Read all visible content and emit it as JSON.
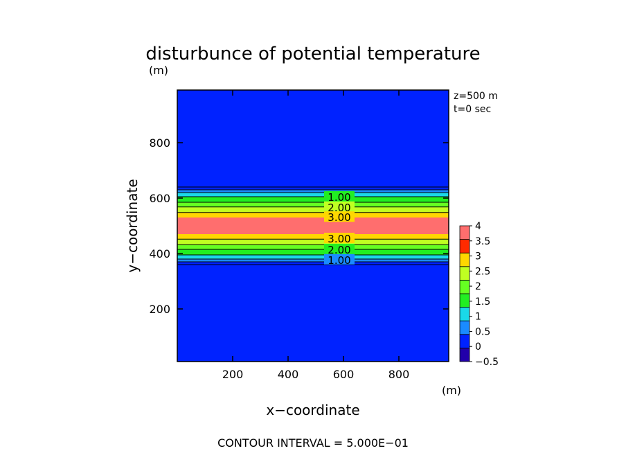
{
  "chart_data": {
    "type": "heatmap",
    "title": "disturbunce of potential temperature",
    "xlabel": "x−coordinate",
    "ylabel": "y−coordinate",
    "x_unit": "(m)",
    "y_unit": "(m)",
    "xlim": [
      0,
      980
    ],
    "ylim": [
      10,
      990
    ],
    "x_ticks": [
      200,
      400,
      600,
      800
    ],
    "y_ticks": [
      200,
      400,
      600,
      800
    ],
    "annotations": [
      "z=500 m",
      "t=0 sec"
    ],
    "footer": "CONTOUR INTERVAL = 5.000E−01",
    "contour_interval": 0.5,
    "field": {
      "description_of_values": "bands of value along y (uniform in x)",
      "bands": [
        {
          "y": [
            10,
            360
          ],
          "value": 0.0
        },
        {
          "y": [
            360,
            370
          ],
          "value": 0.25
        },
        {
          "y": [
            370,
            380
          ],
          "value": 0.75
        },
        {
          "y": [
            380,
            395
          ],
          "value": 1.25
        },
        {
          "y": [
            395,
            415
          ],
          "value": 1.75
        },
        {
          "y": [
            415,
            432
          ],
          "value": 2.25
        },
        {
          "y": [
            432,
            452
          ],
          "value": 2.75
        },
        {
          "y": [
            452,
            470
          ],
          "value": 3.25
        },
        {
          "y": [
            470,
            530
          ],
          "value": 3.75
        },
        {
          "y": [
            530,
            548
          ],
          "value": 3.25
        },
        {
          "y": [
            548,
            568
          ],
          "value": 2.75
        },
        {
          "y": [
            568,
            585
          ],
          "value": 2.25
        },
        {
          "y": [
            585,
            605
          ],
          "value": 1.75
        },
        {
          "y": [
            605,
            620
          ],
          "value": 1.25
        },
        {
          "y": [
            620,
            630
          ],
          "value": 0.75
        },
        {
          "y": [
            630,
            640
          ],
          "value": 0.25
        },
        {
          "y": [
            640,
            990
          ],
          "value": 0.0
        }
      ]
    },
    "contour_labels": [
      {
        "text": "1.00",
        "x": 560,
        "y": 605
      },
      {
        "text": "2.00",
        "x": 560,
        "y": 568
      },
      {
        "text": "3.00",
        "x": 560,
        "y": 532
      },
      {
        "text": "3.00",
        "x": 560,
        "y": 455
      },
      {
        "text": "2.00",
        "x": 560,
        "y": 415
      },
      {
        "text": "1.00",
        "x": 560,
        "y": 378
      }
    ],
    "colorbar": {
      "levels": [
        -0.5,
        0,
        0.5,
        1,
        1.5,
        2,
        2.5,
        3,
        3.5,
        4
      ],
      "tick_labels": [
        "−0.5",
        "0",
        "0.5",
        "1",
        "1.5",
        "2",
        "2.5",
        "3",
        "3.5",
        "4"
      ],
      "colors": [
        "#2200aa",
        "#0022ff",
        "#1a8bff",
        "#1ad9e8",
        "#22ee22",
        "#66ff22",
        "#c0ff22",
        "#ffd700",
        "#ff2a00",
        "#ff6e6e"
      ]
    },
    "level_colors": [
      {
        "value": -0.25,
        "color": "#2200aa"
      },
      {
        "value": 0.0,
        "color": "#0022ff"
      },
      {
        "value": 0.25,
        "color": "#0022ff"
      },
      {
        "value": 0.75,
        "color": "#1a8bff"
      },
      {
        "value": 1.25,
        "color": "#1ad9e8"
      },
      {
        "value": 1.75,
        "color": "#22ee22"
      },
      {
        "value": 2.25,
        "color": "#66ff22"
      },
      {
        "value": 2.75,
        "color": "#c0ff22"
      },
      {
        "value": 3.25,
        "color": "#ffd700"
      },
      {
        "value": 3.75,
        "color": "#ff6e6e"
      }
    ]
  }
}
